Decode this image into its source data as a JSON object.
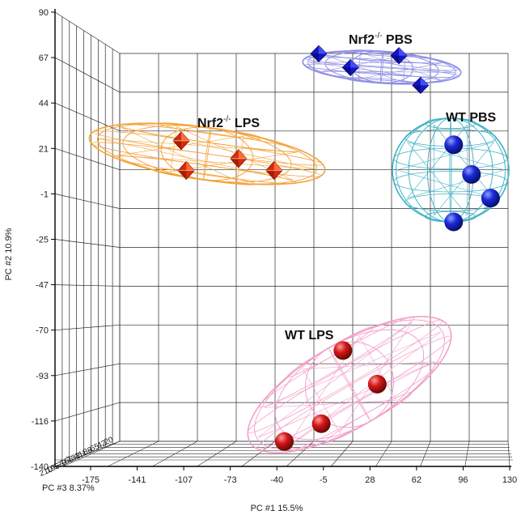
{
  "chart_data": {
    "type": "scatter",
    "dimensions": 3,
    "xlabel": "PC #1 15.5%",
    "ylabel": "PC #2 10.9%",
    "zlabel": "PC #3 8.37%",
    "x_ticks": [
      "-175",
      "-141",
      "-107",
      "-73",
      "-40",
      "-5",
      "28",
      "62",
      "96",
      "130"
    ],
    "y_ticks": [
      "90",
      "67",
      "44",
      "21",
      "-1",
      "-25",
      "-47",
      "-70",
      "-93",
      "-116",
      "-140"
    ],
    "z_ticks": [
      "210",
      "196",
      "179",
      "156",
      "133",
      "111",
      "88",
      "65",
      "42",
      "20"
    ],
    "xlim": [
      -175,
      130
    ],
    "ylim": [
      -140,
      90
    ],
    "grid": true,
    "series": [
      {
        "name": "Nrf2⁻/⁻ PBS",
        "label_main": "Nrf2",
        "label_sup": "-/-",
        "label_tail": " PBS",
        "marker": "diamond",
        "color": "#1515c8",
        "ellipsoid_color": "#8d8de6",
        "points": [
          [
            -20,
            69
          ],
          [
            5,
            62
          ],
          [
            43,
            68
          ],
          [
            60,
            53
          ]
        ]
      },
      {
        "name": "Nrf2⁻/⁻ LPS",
        "label_main": "Nrf2",
        "label_sup": "-/-",
        "label_tail": " LPS",
        "marker": "octahedron",
        "color": "#d92a10",
        "ellipsoid_color": "#f5a23a",
        "points": [
          [
            -128,
            25
          ],
          [
            -124,
            10
          ],
          [
            -83,
            16
          ],
          [
            -55,
            10
          ]
        ]
      },
      {
        "name": "WT PBS",
        "label_main": "WT PBS",
        "label_sup": "",
        "label_tail": "",
        "marker": "sphere",
        "color": "#1c28d8",
        "ellipsoid_color": "#3fb1c4",
        "points": [
          [
            86,
            23
          ],
          [
            100,
            8
          ],
          [
            115,
            -4
          ],
          [
            86,
            -16
          ]
        ]
      },
      {
        "name": "WT LPS",
        "label_main": "WT LPS",
        "label_sup": "",
        "label_tail": "",
        "marker": "sphere",
        "color": "#d41818",
        "ellipsoid_color": "#f2a0c8",
        "points": [
          [
            -1,
            -81
          ],
          [
            26,
            -98
          ],
          [
            -18,
            -118
          ],
          [
            -47,
            -127
          ]
        ]
      }
    ]
  }
}
